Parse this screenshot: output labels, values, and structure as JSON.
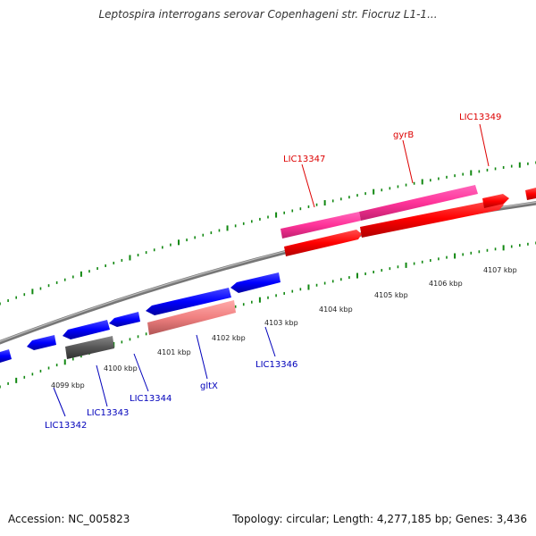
{
  "header": {
    "title": "Leptospira interrogans serovar Copenhageni str. Fiocruz L1-1..."
  },
  "footer": {
    "accession": "Accession: NC_005823",
    "stats": "Topology: circular; Length: 4,277,185 bp; Genes: 3,436"
  },
  "map": {
    "scale_labels": [
      "4099 kbp",
      "4100 kbp",
      "4101 kbp",
      "4102 kbp",
      "4103 kbp",
      "4104 kbp",
      "4105 kbp",
      "4106 kbp",
      "4107 kbp"
    ],
    "labels": {
      "LIC13342": "LIC13342",
      "LIC13343": "LIC13343",
      "LIC13344": "LIC13344",
      "gltX": "gltX",
      "LIC13346": "LIC13346",
      "LIC13347": "LIC13347",
      "gyrB": "gyrB",
      "LIC13349": "LIC13349"
    },
    "colors": {
      "forward_gene": "#ff0000",
      "reverse_gene": "#0000ff",
      "highlight_forward": "#ff3399",
      "highlight_reverse": "#f08080",
      "other_gene": "#555555",
      "backbone": "#8a8a8a",
      "tick": "#118811",
      "forward_label": "#dd0000",
      "reverse_label": "#0000bb"
    }
  }
}
